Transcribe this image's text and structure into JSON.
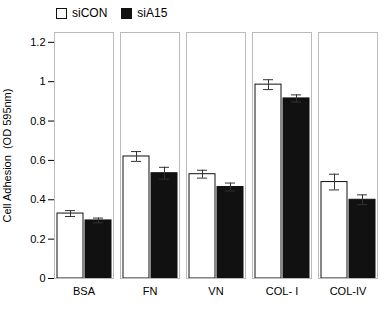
{
  "chart_data": {
    "type": "bar",
    "categories": [
      "BSA",
      "FN",
      "VN",
      "COL- I",
      "COL-IV"
    ],
    "series": [
      {
        "name": "siCON",
        "color": "#ffffff",
        "values": [
          0.33,
          0.62,
          0.53,
          0.985,
          0.49
        ],
        "errors": [
          0.015,
          0.025,
          0.02,
          0.025,
          0.04
        ]
      },
      {
        "name": "siA15",
        "color": "#111111",
        "values": [
          0.295,
          0.535,
          0.465,
          0.915,
          0.4
        ],
        "errors": [
          0.012,
          0.03,
          0.02,
          0.018,
          0.025
        ]
      }
    ],
    "ylabel": "Cell Adhesion  (OD 595nm)",
    "ylim": [
      0,
      1.25
    ],
    "yticks": [
      0,
      0.2,
      0.4,
      0.6,
      0.8,
      1,
      1.2
    ],
    "grid": false,
    "legend": "upper left"
  }
}
